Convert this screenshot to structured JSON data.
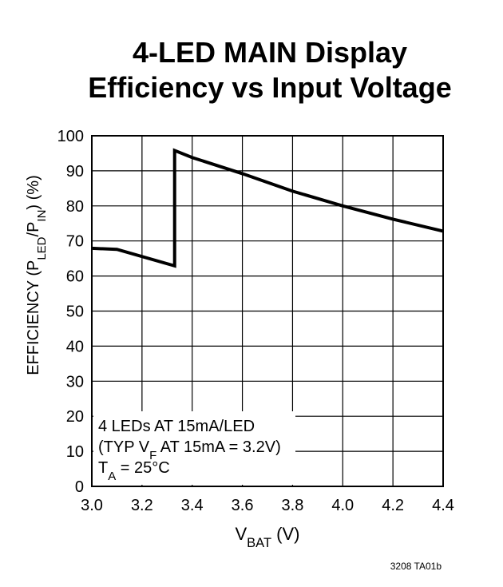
{
  "chart_data": {
    "type": "line",
    "title": [
      "4-LED MAIN Display",
      "Efficiency vs Input Voltage"
    ],
    "xlabel": [
      "V",
      "BAT",
      " (V)"
    ],
    "ylabel": [
      "EFFICIENCY (P",
      "LED",
      "/P",
      "IN",
      ") (%)"
    ],
    "x": [
      3.0,
      3.1,
      3.33,
      3.33,
      3.4,
      3.6,
      3.8,
      4.0,
      4.2,
      4.4
    ],
    "values": [
      67.9,
      67.6,
      62.9,
      95.8,
      93.8,
      89.2,
      84.2,
      80,
      76.2,
      72.8
    ],
    "color": "#000000",
    "xlim": [
      3.0,
      4.4
    ],
    "xticks": [
      {
        "value": 3,
        "label": "3.0"
      },
      3.2,
      3.4,
      3.6,
      3.8,
      {
        "value": 4,
        "label": "4.0"
      },
      4.2,
      4.4
    ],
    "ylim": [
      0,
      100
    ],
    "yticks": [
      0,
      10,
      20,
      30,
      40,
      50,
      60,
      70,
      80,
      90,
      100
    ],
    "grid": true,
    "annotation": [
      [
        "4 LEDs AT 15mA/LED"
      ],
      [
        "(TYP V",
        "F",
        " AT 15mA = 3.2V)"
      ],
      [
        "T",
        "A",
        " = 25°C"
      ]
    ],
    "footnote": "3208 TA01b"
  }
}
